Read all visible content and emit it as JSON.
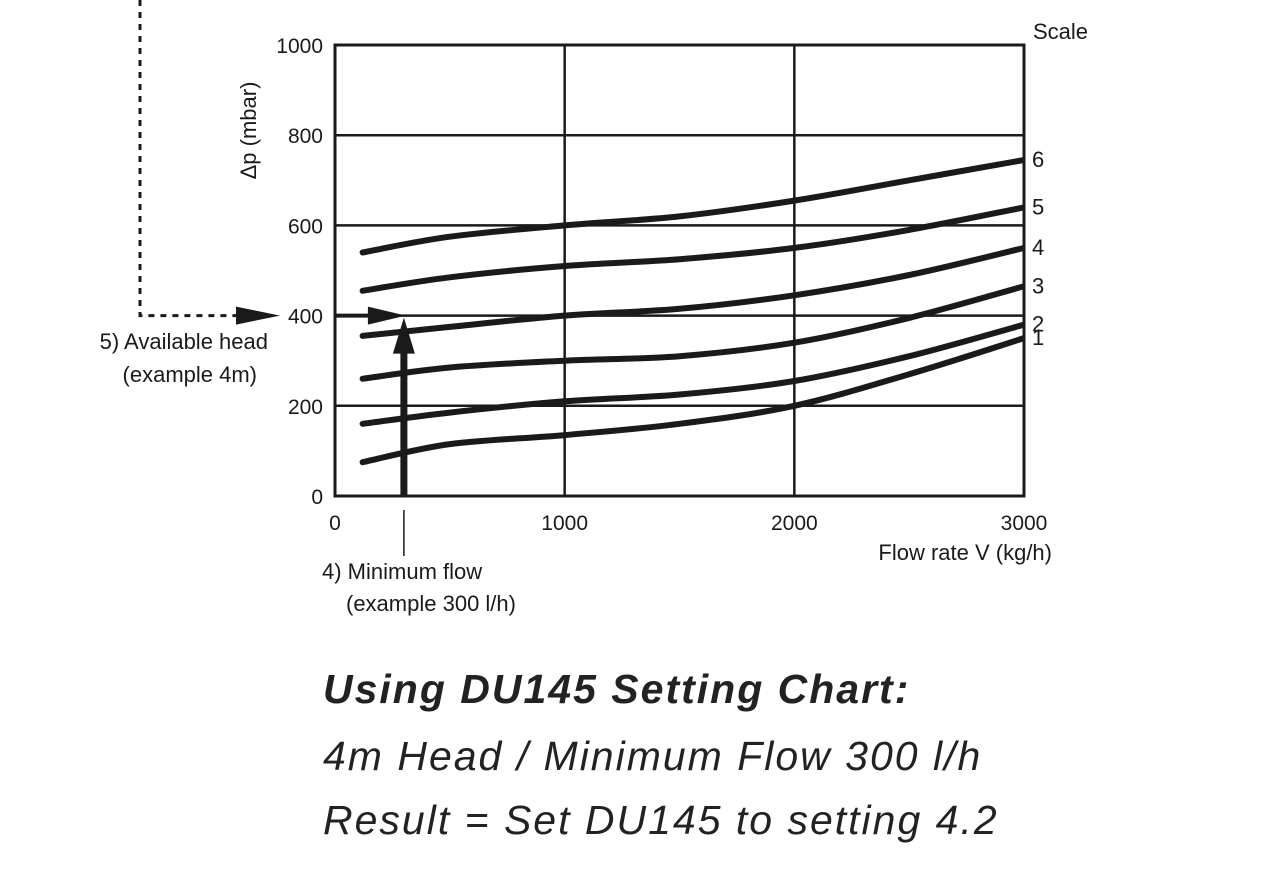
{
  "chart_data": {
    "type": "line",
    "ylabel": "Δp (mbar)",
    "xlabel": "Flow rate V (kg/h)",
    "xlim": [
      0,
      3000
    ],
    "ylim": [
      0,
      1000
    ],
    "x_ticks": [
      "0",
      "1000",
      "2000",
      "3000"
    ],
    "y_ticks": [
      "0",
      "200",
      "400",
      "600",
      "800",
      "1000"
    ],
    "grid": true,
    "scale_label": "Scale",
    "series": [
      {
        "name": "1",
        "points": [
          [
            120,
            75
          ],
          [
            500,
            115
          ],
          [
            1000,
            135
          ],
          [
            1500,
            160
          ],
          [
            2000,
            200
          ],
          [
            2500,
            270
          ],
          [
            3000,
            350
          ]
        ]
      },
      {
        "name": "2",
        "points": [
          [
            120,
            160
          ],
          [
            500,
            185
          ],
          [
            1000,
            210
          ],
          [
            1500,
            225
          ],
          [
            2000,
            255
          ],
          [
            2500,
            310
          ],
          [
            3000,
            380
          ]
        ]
      },
      {
        "name": "3",
        "points": [
          [
            120,
            260
          ],
          [
            500,
            285
          ],
          [
            1000,
            300
          ],
          [
            1500,
            310
          ],
          [
            2000,
            340
          ],
          [
            2500,
            395
          ],
          [
            3000,
            465
          ]
        ]
      },
      {
        "name": "4",
        "points": [
          [
            120,
            355
          ],
          [
            500,
            375
          ],
          [
            1000,
            400
          ],
          [
            1500,
            415
          ],
          [
            2000,
            445
          ],
          [
            2500,
            490
          ],
          [
            3000,
            550
          ]
        ]
      },
      {
        "name": "5",
        "points": [
          [
            120,
            455
          ],
          [
            500,
            485
          ],
          [
            1000,
            510
          ],
          [
            1500,
            525
          ],
          [
            2000,
            550
          ],
          [
            2500,
            590
          ],
          [
            3000,
            640
          ]
        ]
      },
      {
        "name": "6",
        "points": [
          [
            120,
            540
          ],
          [
            500,
            575
          ],
          [
            1000,
            600
          ],
          [
            1500,
            620
          ],
          [
            2000,
            655
          ],
          [
            2500,
            700
          ],
          [
            3000,
            745
          ]
        ]
      }
    ],
    "annotations": {
      "available_head": {
        "value": 400,
        "line1": "5) Available head",
        "line2": "(example 4m)"
      },
      "minimum_flow": {
        "value": 300,
        "line1": "4) Minimum flow",
        "line2": "(example 300 l/h)"
      }
    }
  },
  "caption": {
    "title": "Using DU145 Setting Chart:",
    "line1": "4m Head / Minimum Flow 300 l/h",
    "line2": "Result = Set DU145 to setting 4.2"
  }
}
